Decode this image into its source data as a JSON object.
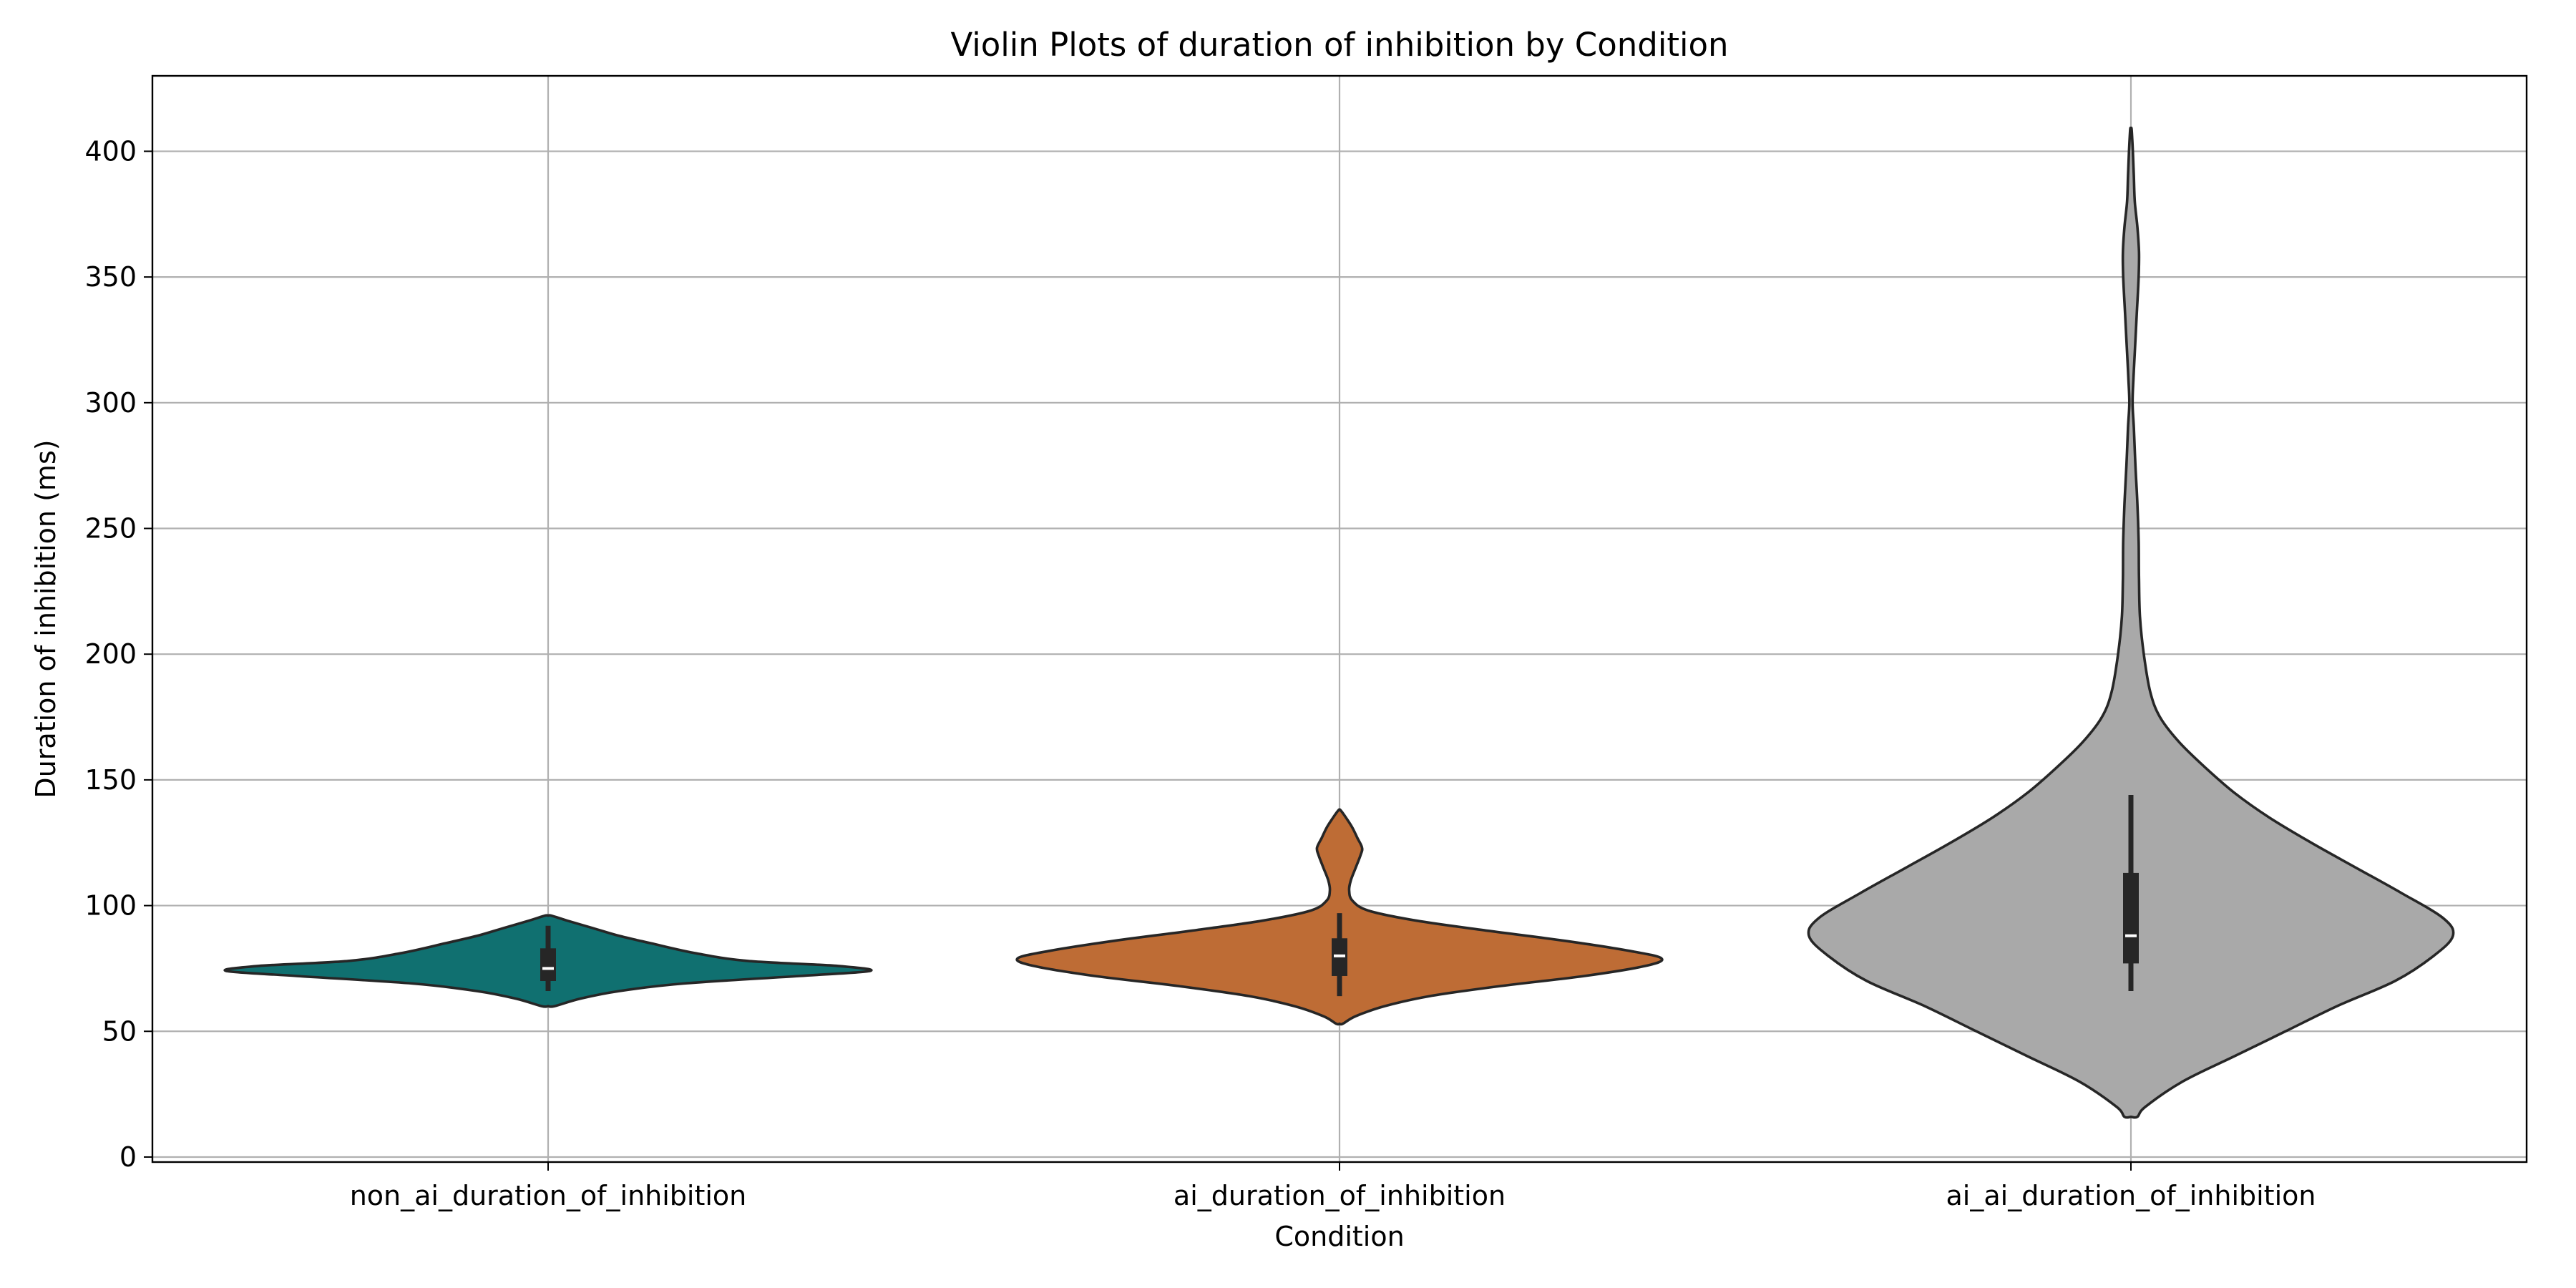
{
  "chart_data": {
    "type": "violin",
    "title": "Violin Plots of duration of inhibition by Condition",
    "xlabel": "Condition",
    "ylabel": "Duration of inhibition (ms)",
    "ylim": [
      -2,
      430
    ],
    "yticks": [
      0,
      50,
      100,
      150,
      200,
      250,
      300,
      350,
      400
    ],
    "grid": true,
    "categories": [
      "non_ai_duration_of_inhibition",
      "ai_duration_of_inhibition",
      "ai_ai_duration_of_inhibition"
    ],
    "series": [
      {
        "category": "non_ai_duration_of_inhibition",
        "color": "#107070",
        "range": [
          60,
          96
        ],
        "quartiles": [
          70,
          75,
          83
        ],
        "median": 75,
        "whiskers": [
          66,
          92
        ],
        "density": [
          [
            60,
            0.02
          ],
          [
            63,
            0.1
          ],
          [
            66,
            0.22
          ],
          [
            69,
            0.42
          ],
          [
            72,
            0.78
          ],
          [
            74,
            1.0
          ],
          [
            76,
            0.9
          ],
          [
            78,
            0.62
          ],
          [
            81,
            0.46
          ],
          [
            85,
            0.32
          ],
          [
            88,
            0.22
          ],
          [
            91,
            0.14
          ],
          [
            94,
            0.06
          ],
          [
            96,
            0.01
          ]
        ]
      },
      {
        "category": "ai_duration_of_inhibition",
        "color": "#BE6C35",
        "range": [
          53,
          138
        ],
        "quartiles": [
          72,
          80,
          87
        ],
        "median": 80,
        "whiskers": [
          64,
          97
        ],
        "density": [
          [
            53,
            0.01
          ],
          [
            56,
            0.05
          ],
          [
            60,
            0.14
          ],
          [
            64,
            0.28
          ],
          [
            68,
            0.5
          ],
          [
            72,
            0.76
          ],
          [
            76,
            0.95
          ],
          [
            79,
            1.0
          ],
          [
            82,
            0.9
          ],
          [
            86,
            0.7
          ],
          [
            90,
            0.46
          ],
          [
            94,
            0.24
          ],
          [
            98,
            0.09
          ],
          [
            102,
            0.04
          ],
          [
            106,
            0.03
          ],
          [
            110,
            0.035
          ],
          [
            115,
            0.05
          ],
          [
            120,
            0.065
          ],
          [
            123,
            0.07
          ],
          [
            127,
            0.055
          ],
          [
            131,
            0.04
          ],
          [
            135,
            0.02
          ],
          [
            138,
            0.003
          ]
        ]
      },
      {
        "category": "ai_ai_duration_of_inhibition",
        "color": "#A9A9A9",
        "range": [
          16,
          409
        ],
        "quartiles": [
          77,
          88,
          113
        ],
        "median": 88,
        "whiskers": [
          66,
          144
        ],
        "density": [
          [
            16,
            0.02
          ],
          [
            20,
            0.045
          ],
          [
            30,
            0.16
          ],
          [
            40,
            0.32
          ],
          [
            50,
            0.48
          ],
          [
            60,
            0.64
          ],
          [
            70,
            0.82
          ],
          [
            80,
            0.94
          ],
          [
            88,
            1.0
          ],
          [
            95,
            0.97
          ],
          [
            105,
            0.84
          ],
          [
            115,
            0.7
          ],
          [
            125,
            0.56
          ],
          [
            135,
            0.43
          ],
          [
            145,
            0.32
          ],
          [
            155,
            0.23
          ],
          [
            165,
            0.15
          ],
          [
            175,
            0.09
          ],
          [
            185,
            0.06
          ],
          [
            200,
            0.04
          ],
          [
            215,
            0.028
          ],
          [
            230,
            0.025
          ],
          [
            245,
            0.024
          ],
          [
            260,
            0.02
          ],
          [
            275,
            0.014
          ],
          [
            290,
            0.009
          ],
          [
            300,
            0.005
          ],
          [
            310,
            0.008
          ],
          [
            320,
            0.012
          ],
          [
            335,
            0.018
          ],
          [
            350,
            0.024
          ],
          [
            360,
            0.025
          ],
          [
            370,
            0.02
          ],
          [
            380,
            0.012
          ],
          [
            390,
            0.009
          ],
          [
            400,
            0.006
          ],
          [
            405,
            0.004
          ],
          [
            409,
            0.002
          ]
        ]
      }
    ]
  }
}
